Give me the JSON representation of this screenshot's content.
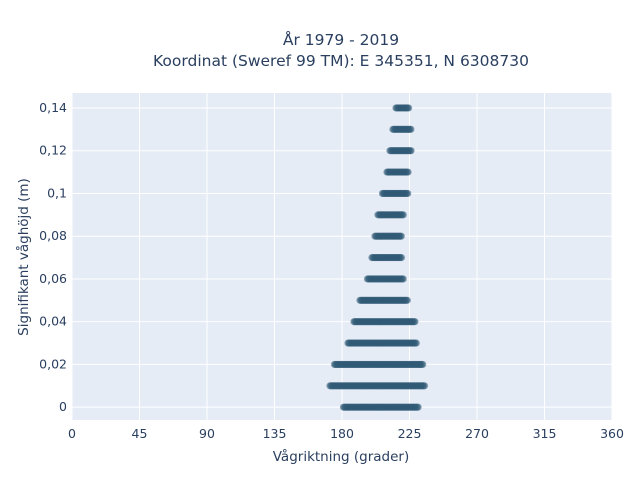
{
  "chart_data": {
    "type": "scatter",
    "title_line1": "År 1979 - 2019",
    "title_line2": "Koordinat (Sweref 99 TM): E 345351, N 6308730",
    "xlabel": "Vågriktning (grader)",
    "ylabel": "Signifikant våghöjd (m)",
    "xlim": [
      0,
      360
    ],
    "ylim": [
      -0.006,
      0.147
    ],
    "x_ticks": [
      0,
      45,
      90,
      135,
      180,
      225,
      270,
      315,
      360
    ],
    "x_tick_labels": [
      "0",
      "45",
      "90",
      "135",
      "180",
      "225",
      "270",
      "315",
      "360"
    ],
    "y_ticks": [
      0,
      0.02,
      0.04,
      0.06,
      0.08,
      0.1,
      0.12,
      0.14
    ],
    "y_tick_labels": [
      "0",
      "0,02",
      "0,04",
      "0,06",
      "0,08",
      "0,1",
      "0,12",
      "0,14"
    ],
    "grid": true,
    "marker_color": "#2f5a74",
    "plot_bg": "#e5ecf6",
    "series": [
      {
        "points_by_height": [
          {
            "y": 0.0,
            "x_min": 181,
            "x_max": 231
          },
          {
            "y": 0.01,
            "x_min": 172,
            "x_max": 235
          },
          {
            "y": 0.02,
            "x_min": 175,
            "x_max": 234
          },
          {
            "y": 0.03,
            "x_min": 184,
            "x_max": 230
          },
          {
            "y": 0.04,
            "x_min": 188,
            "x_max": 229
          },
          {
            "y": 0.05,
            "x_min": 192,
            "x_max": 224
          },
          {
            "y": 0.06,
            "x_min": 197,
            "x_max": 221
          },
          {
            "y": 0.07,
            "x_min": 200,
            "x_max": 220
          },
          {
            "y": 0.08,
            "x_min": 202,
            "x_max": 220
          },
          {
            "y": 0.09,
            "x_min": 204,
            "x_max": 221
          },
          {
            "y": 0.1,
            "x_min": 207,
            "x_max": 224
          },
          {
            "y": 0.11,
            "x_min": 210,
            "x_max": 224
          },
          {
            "y": 0.12,
            "x_min": 212,
            "x_max": 226
          },
          {
            "y": 0.13,
            "x_min": 214,
            "x_max": 226
          },
          {
            "y": 0.14,
            "x_min": 216,
            "x_max": 225
          }
        ]
      }
    ]
  }
}
